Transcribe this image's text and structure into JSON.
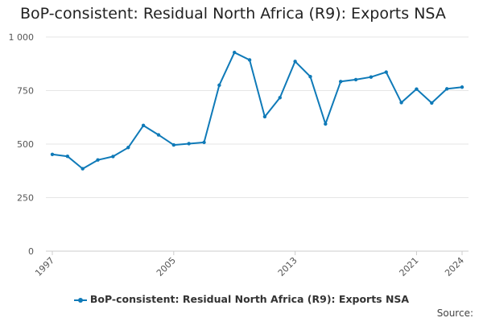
{
  "title": "BoP-consistent: Residual North Africa (R9): Exports NSA",
  "source_label": "Source:",
  "colors": {
    "series": "#0f7ab8",
    "grid": "#e6e6e6",
    "axis": "#cccccc"
  },
  "chart_data": {
    "type": "line",
    "title": "BoP-consistent: Residual North Africa (R9): Exports NSA",
    "xlabel": "",
    "ylabel": "",
    "x": [
      1997,
      1998,
      1999,
      2000,
      2001,
      2002,
      2003,
      2004,
      2005,
      2006,
      2007,
      2008,
      2009,
      2010,
      2011,
      2012,
      2013,
      2014,
      2015,
      2016,
      2017,
      2018,
      2019,
      2020,
      2021,
      2022,
      2023,
      2024
    ],
    "series": [
      {
        "name": "BoP-consistent: Residual North Africa (R9): Exports NSA",
        "values": [
          452,
          443,
          385,
          426,
          442,
          484,
          587,
          543,
          496,
          502,
          508,
          775,
          928,
          893,
          628,
          717,
          886,
          815,
          594,
          792,
          801,
          813,
          836,
          694,
          757,
          692,
          758,
          766
        ]
      }
    ],
    "ylim": [
      0,
      1000
    ],
    "yticks": [
      0,
      250,
      500,
      750,
      1000
    ],
    "ytick_labels": [
      "0",
      "250",
      "500",
      "750",
      "1 000"
    ],
    "xticks": [
      1997,
      2005,
      2013,
      2021,
      2024
    ],
    "xtick_labels": [
      "1997",
      "2005",
      "2013",
      "2021",
      "2024"
    ],
    "grid": true,
    "legend": "bottom-center"
  }
}
